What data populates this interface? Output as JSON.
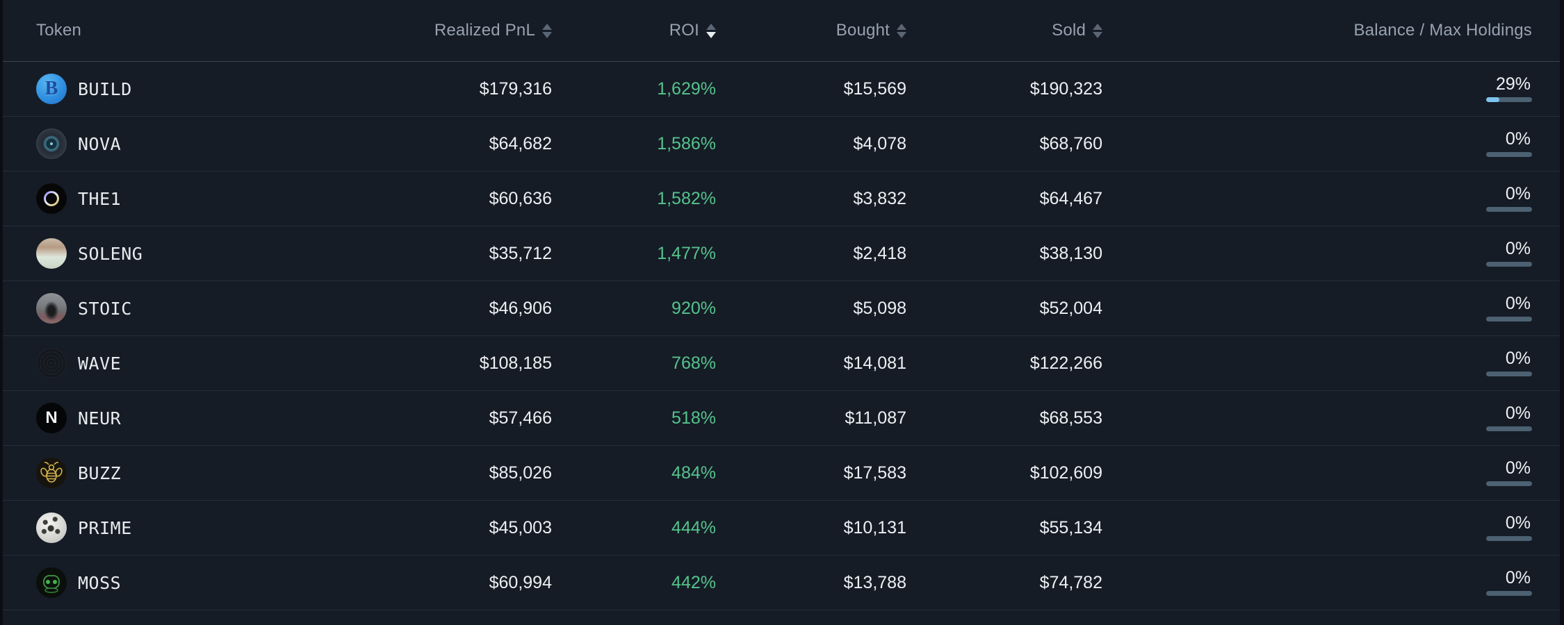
{
  "table": {
    "columns": {
      "token": {
        "label": "Token",
        "sortable": false
      },
      "pnl": {
        "label": "Realized PnL",
        "sortable": true,
        "sort": "none"
      },
      "roi": {
        "label": "ROI",
        "sortable": true,
        "sort": "desc"
      },
      "bought": {
        "label": "Bought",
        "sortable": true,
        "sort": "none"
      },
      "sold": {
        "label": "Sold",
        "sortable": true,
        "sort": "none"
      },
      "balance": {
        "label": "Balance / Max Holdings",
        "sortable": false
      }
    },
    "rows": [
      {
        "token": "BUILD",
        "icon": "build-token-icon",
        "icon_letter": "B",
        "realized_pnl": "$179,316",
        "roi": "1,629%",
        "bought": "$15,569",
        "sold": "$190,323",
        "balance_pct": "29%",
        "balance_value": 29
      },
      {
        "token": "NOVA",
        "icon": "nova-token-icon",
        "realized_pnl": "$64,682",
        "roi": "1,586%",
        "bought": "$4,078",
        "sold": "$68,760",
        "balance_pct": "0%",
        "balance_value": 0
      },
      {
        "token": "THE1",
        "icon": "the1-token-icon",
        "realized_pnl": "$60,636",
        "roi": "1,582%",
        "bought": "$3,832",
        "sold": "$64,467",
        "balance_pct": "0%",
        "balance_value": 0
      },
      {
        "token": "SOLENG",
        "icon": "soleng-token-icon",
        "realized_pnl": "$35,712",
        "roi": "1,477%",
        "bought": "$2,418",
        "sold": "$38,130",
        "balance_pct": "0%",
        "balance_value": 0
      },
      {
        "token": "STOIC",
        "icon": "stoic-token-icon",
        "realized_pnl": "$46,906",
        "roi": "920%",
        "bought": "$5,098",
        "sold": "$52,004",
        "balance_pct": "0%",
        "balance_value": 0
      },
      {
        "token": "WAVE",
        "icon": "wave-token-icon",
        "realized_pnl": "$108,185",
        "roi": "768%",
        "bought": "$14,081",
        "sold": "$122,266",
        "balance_pct": "0%",
        "balance_value": 0
      },
      {
        "token": "NEUR",
        "icon": "neur-token-icon",
        "icon_letter": "N",
        "realized_pnl": "$57,466",
        "roi": "518%",
        "bought": "$11,087",
        "sold": "$68,553",
        "balance_pct": "0%",
        "balance_value": 0
      },
      {
        "token": "BUZZ",
        "icon": "buzz-token-icon",
        "realized_pnl": "$85,026",
        "roi": "484%",
        "bought": "$17,583",
        "sold": "$102,609",
        "balance_pct": "0%",
        "balance_value": 0
      },
      {
        "token": "PRIME",
        "icon": "prime-token-icon",
        "realized_pnl": "$45,003",
        "roi": "444%",
        "bought": "$10,131",
        "sold": "$55,134",
        "balance_pct": "0%",
        "balance_value": 0
      },
      {
        "token": "MOSS",
        "icon": "moss-token-icon",
        "realized_pnl": "$60,994",
        "roi": "442%",
        "bought": "$13,788",
        "sold": "$74,782",
        "balance_pct": "0%",
        "balance_value": 0
      }
    ]
  },
  "colors": {
    "background": "#151c26",
    "page_edge": "#0a0e14",
    "row_divider": "#242e3a",
    "header_divider": "#3a4450",
    "header_text": "#98a2b0",
    "value_text": "#edf0f3",
    "roi_green": "#56c38c",
    "bar_track": "#4c6172",
    "bar_fill": "#7fc3ef",
    "sort_inactive": "#5b6675",
    "sort_active": "#e9edf2"
  }
}
